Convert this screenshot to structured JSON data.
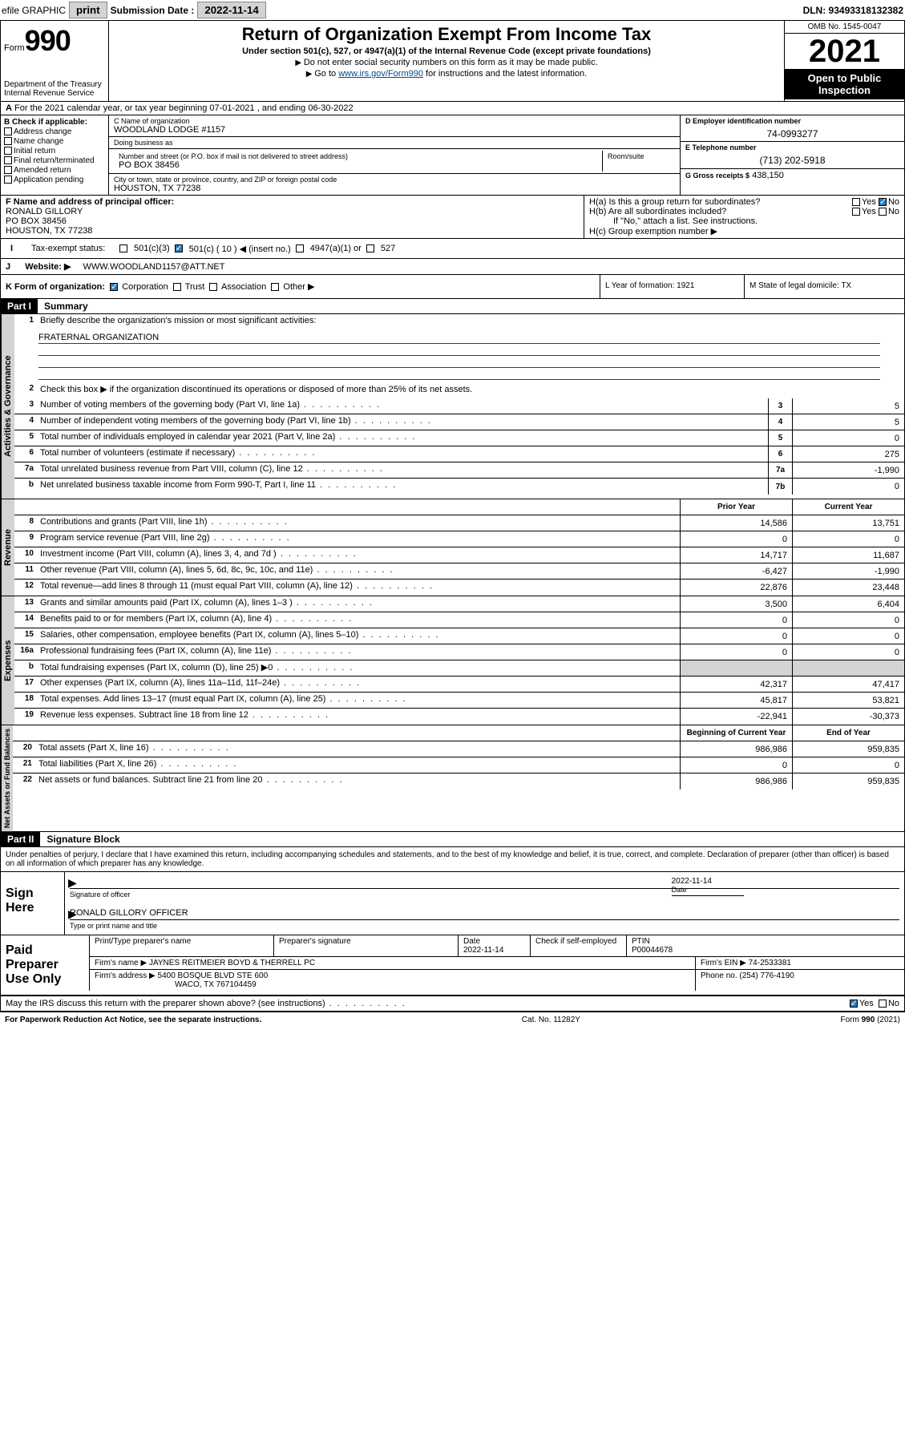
{
  "topbar": {
    "efile": "efile GRAPHIC",
    "print": "print",
    "sub_label": "Submission Date :",
    "sub_date": "2022-11-14",
    "dln": "DLN: 93493318132382"
  },
  "header": {
    "form_prefix": "Form",
    "form_number": "990",
    "dept": "Department of the Treasury",
    "irs": "Internal Revenue Service",
    "title": "Return of Organization Exempt From Income Tax",
    "sub": "Under section 501(c), 527, or 4947(a)(1) of the Internal Revenue Code (except private foundations)",
    "note1": "Do not enter social security numbers on this form as it may be made public.",
    "note2_pre": "Go to ",
    "note2_link": "www.irs.gov/Form990",
    "note2_post": " for instructions and the latest information.",
    "omb": "OMB No. 1545-0047",
    "year": "2021",
    "open": "Open to Public Inspection"
  },
  "rowA": "For the 2021 calendar year, or tax year beginning 07-01-2021  , and ending 06-30-2022",
  "colB": {
    "title": "B Check if applicable:",
    "items": [
      "Address change",
      "Name change",
      "Initial return",
      "Final return/terminated",
      "Amended return",
      "Application pending"
    ]
  },
  "colC": {
    "name_lbl": "C Name of organization",
    "name": "WOODLAND LODGE #1157",
    "dba_lbl": "Doing business as",
    "addr_lbl": "Number and street (or P.O. box if mail is not delivered to street address)",
    "addr": "PO BOX 38456",
    "room_lbl": "Room/suite",
    "city_lbl": "City or town, state or province, country, and ZIP or foreign postal code",
    "city": "HOUSTON, TX  77238"
  },
  "colD": {
    "ein_lbl": "D Employer identification number",
    "ein": "74-0993277",
    "phone_lbl": "E Telephone number",
    "phone": "(713) 202-5918",
    "gross_lbl": "G Gross receipts $",
    "gross": "438,150"
  },
  "colF": {
    "lbl": "F Name and address of principal officer:",
    "name": "RONALD GILLORY",
    "addr1": "PO BOX 38456",
    "addr2": "HOUSTON, TX  77238"
  },
  "colH": {
    "a": "H(a)  Is this a group return for subordinates?",
    "b": "H(b)  Are all subordinates included?",
    "b_note": "If \"No,\" attach a list. See instructions.",
    "c": "H(c)  Group exemption number ▶"
  },
  "rowI": {
    "lbl": "Tax-exempt status:",
    "opts": [
      "501(c)(3)",
      "501(c) ( 10 ) ◀ (insert no.)",
      "4947(a)(1) or",
      "527"
    ]
  },
  "rowJ": {
    "lbl": "Website: ▶",
    "val": "WWW.WOODLAND1157@ATT.NET"
  },
  "rowK": "K Form of organization:",
  "rowK_opts": [
    "Corporation",
    "Trust",
    "Association",
    "Other ▶"
  ],
  "rowL": "L Year of formation: 1921",
  "rowM": "M State of legal domicile: TX",
  "part1": {
    "hdr": "Part I",
    "title": "Summary",
    "l1": "Briefly describe the organization's mission or most significant activities:",
    "mission": "FRATERNAL ORGANIZATION",
    "l2": "Check this box ▶       if the organization discontinued its operations or disposed of more than 25% of its net assets.",
    "tab_gov": "Activities & Governance",
    "tab_rev": "Revenue",
    "tab_exp": "Expenses",
    "tab_net": "Net Assets or Fund Balances",
    "py": "Prior Year",
    "cy": "Current Year",
    "bcy": "Beginning of Current Year",
    "eoy": "End of Year",
    "lines_gov": [
      {
        "n": "3",
        "t": "Number of voting members of the governing body (Part VI, line 1a)",
        "box": "3",
        "v": "5"
      },
      {
        "n": "4",
        "t": "Number of independent voting members of the governing body (Part VI, line 1b)",
        "box": "4",
        "v": "5"
      },
      {
        "n": "5",
        "t": "Total number of individuals employed in calendar year 2021 (Part V, line 2a)",
        "box": "5",
        "v": "0"
      },
      {
        "n": "6",
        "t": "Total number of volunteers (estimate if necessary)",
        "box": "6",
        "v": "275"
      },
      {
        "n": "7a",
        "t": "Total unrelated business revenue from Part VIII, column (C), line 12",
        "box": "7a",
        "v": "-1,990"
      },
      {
        "n": "b",
        "t": "Net unrelated business taxable income from Form 990-T, Part I, line 11",
        "box": "7b",
        "v": "0"
      }
    ],
    "lines_rev": [
      {
        "n": "8",
        "t": "Contributions and grants (Part VIII, line 1h)",
        "py": "14,586",
        "cy": "13,751"
      },
      {
        "n": "9",
        "t": "Program service revenue (Part VIII, line 2g)",
        "py": "0",
        "cy": "0"
      },
      {
        "n": "10",
        "t": "Investment income (Part VIII, column (A), lines 3, 4, and 7d )",
        "py": "14,717",
        "cy": "11,687"
      },
      {
        "n": "11",
        "t": "Other revenue (Part VIII, column (A), lines 5, 6d, 8c, 9c, 10c, and 11e)",
        "py": "-6,427",
        "cy": "-1,990"
      },
      {
        "n": "12",
        "t": "Total revenue—add lines 8 through 11 (must equal Part VIII, column (A), line 12)",
        "py": "22,876",
        "cy": "23,448"
      }
    ],
    "lines_exp": [
      {
        "n": "13",
        "t": "Grants and similar amounts paid (Part IX, column (A), lines 1–3 )",
        "py": "3,500",
        "cy": "6,404"
      },
      {
        "n": "14",
        "t": "Benefits paid to or for members (Part IX, column (A), line 4)",
        "py": "0",
        "cy": "0"
      },
      {
        "n": "15",
        "t": "Salaries, other compensation, employee benefits (Part IX, column (A), lines 5–10)",
        "py": "0",
        "cy": "0"
      },
      {
        "n": "16a",
        "t": "Professional fundraising fees (Part IX, column (A), line 11e)",
        "py": "0",
        "cy": "0"
      },
      {
        "n": "b",
        "t": "Total fundraising expenses (Part IX, column (D), line 25) ▶0",
        "py": "",
        "cy": "",
        "grey": true
      },
      {
        "n": "17",
        "t": "Other expenses (Part IX, column (A), lines 11a–11d, 11f–24e)",
        "py": "42,317",
        "cy": "47,417"
      },
      {
        "n": "18",
        "t": "Total expenses. Add lines 13–17 (must equal Part IX, column (A), line 25)",
        "py": "45,817",
        "cy": "53,821"
      },
      {
        "n": "19",
        "t": "Revenue less expenses. Subtract line 18 from line 12",
        "py": "-22,941",
        "cy": "-30,373"
      }
    ],
    "lines_net": [
      {
        "n": "20",
        "t": "Total assets (Part X, line 16)",
        "py": "986,986",
        "cy": "959,835"
      },
      {
        "n": "21",
        "t": "Total liabilities (Part X, line 26)",
        "py": "0",
        "cy": "0"
      },
      {
        "n": "22",
        "t": "Net assets or fund balances. Subtract line 21 from line 20",
        "py": "986,986",
        "cy": "959,835"
      }
    ]
  },
  "part2": {
    "hdr": "Part II",
    "title": "Signature Block",
    "decl": "Under penalties of perjury, I declare that I have examined this return, including accompanying schedules and statements, and to the best of my knowledge and belief, it is true, correct, and complete. Declaration of preparer (other than officer) is based on all information of which preparer has any knowledge.",
    "sign_here": "Sign Here",
    "sig_officer": "Signature of officer",
    "sig_date": "2022-11-14",
    "date_lbl": "Date",
    "officer": "RONALD GILLORY OFFICER",
    "officer_lbl": "Type or print name and title",
    "paid": "Paid Preparer Use Only",
    "p_name_lbl": "Print/Type preparer's name",
    "p_sig_lbl": "Preparer's signature",
    "p_date_lbl": "Date",
    "p_date": "2022-11-14",
    "p_check": "Check        if self-employed",
    "p_ptin_lbl": "PTIN",
    "p_ptin": "P00044678",
    "firm_name_lbl": "Firm's name    ▶",
    "firm_name": "JAYNES REITMEIER BOYD & THERRELL PC",
    "firm_ein_lbl": "Firm's EIN ▶",
    "firm_ein": "74-2533381",
    "firm_addr_lbl": "Firm's address ▶",
    "firm_addr1": "5400 BOSQUE BLVD STE 600",
    "firm_addr2": "WACO, TX  767104459",
    "firm_phone_lbl": "Phone no.",
    "firm_phone": "(254) 776-4190",
    "discuss": "May the IRS discuss this return with the preparer shown above? (see instructions)"
  },
  "footer": {
    "left": "For Paperwork Reduction Act Notice, see the separate instructions.",
    "mid": "Cat. No. 11282Y",
    "right": "Form 990 (2021)"
  },
  "yes": "Yes",
  "no": "No"
}
